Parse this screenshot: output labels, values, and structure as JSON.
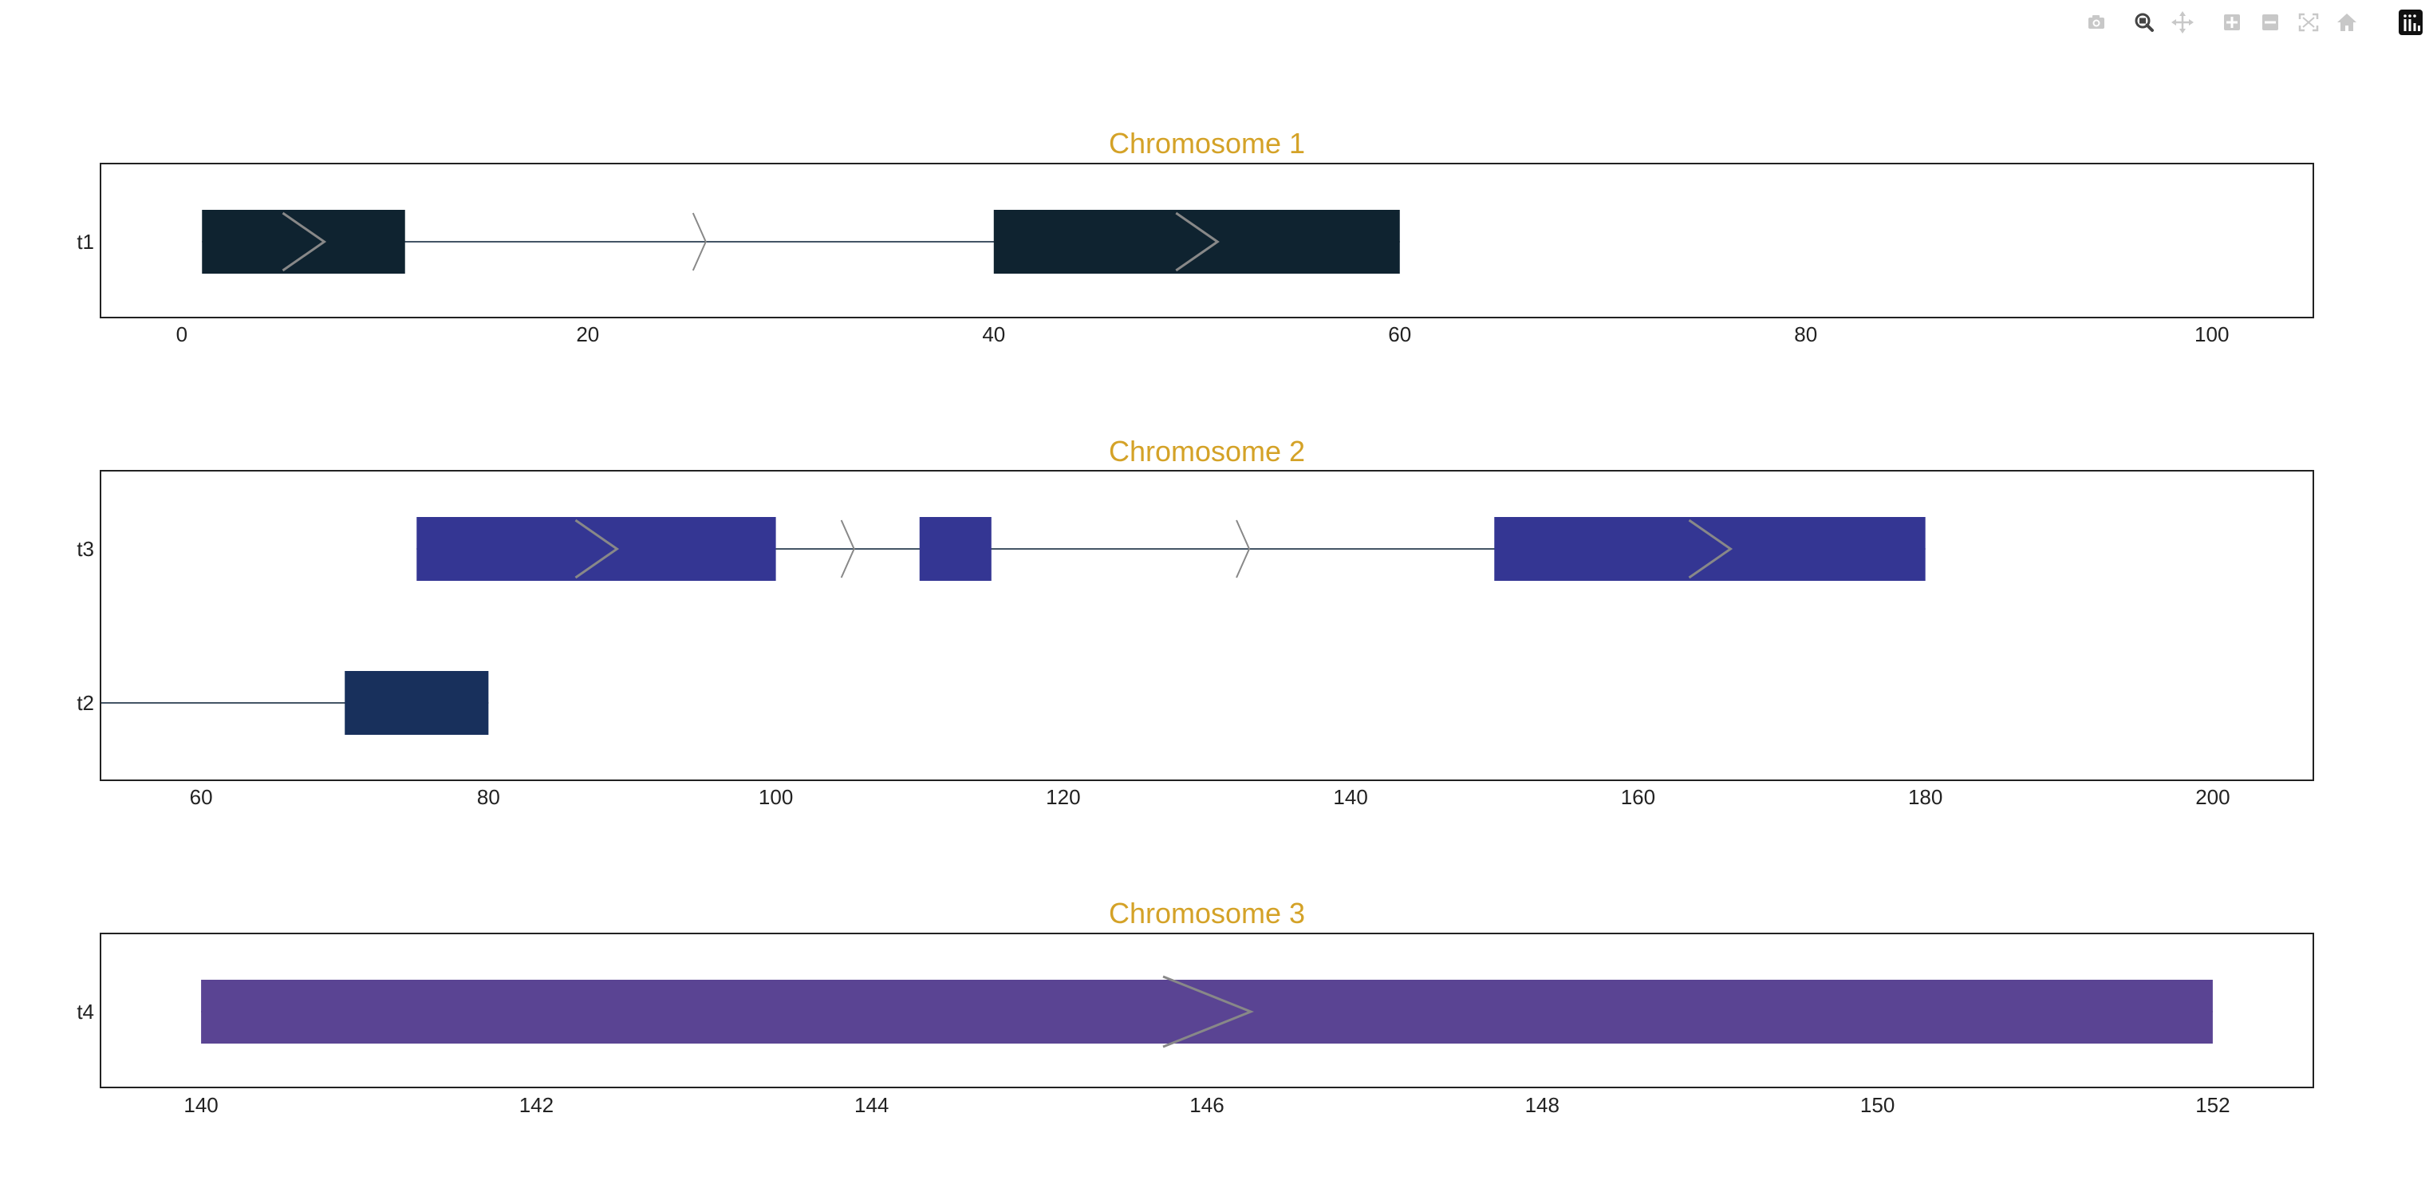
{
  "toolbar": {
    "buttons": [
      {
        "id": "camera",
        "icon": "camera-icon",
        "label": "Download plot as a png",
        "active": false
      },
      {
        "id": "zoom",
        "icon": "zoom-icon",
        "label": "Zoom",
        "active": true
      },
      {
        "id": "pan",
        "icon": "pan-icon",
        "label": "Pan",
        "active": false
      },
      {
        "id": "zoom-in",
        "icon": "zoom-in-icon",
        "label": "Zoom in",
        "active": false
      },
      {
        "id": "zoom-out",
        "icon": "zoom-out-icon",
        "label": "Zoom out",
        "active": false
      },
      {
        "id": "autoscale",
        "icon": "autoscale-icon",
        "label": "Autoscale",
        "active": false
      },
      {
        "id": "reset",
        "icon": "home-icon",
        "label": "Reset axes",
        "active": false
      },
      {
        "id": "logo",
        "icon": "plotly-logo-icon",
        "label": "Produced with Plotly",
        "active": false
      }
    ],
    "active_color": "#444444",
    "inactive_color": "#c8c8c8"
  },
  "chart_data": [
    {
      "type": "gene-track",
      "title": "Chromosome 1",
      "xlim": [
        -4,
        105
      ],
      "xticks": [
        0,
        20,
        40,
        60,
        80,
        100
      ],
      "tracks": [
        {
          "label": "t1",
          "color": "#0f2330",
          "strand": "+",
          "span": [
            1,
            60
          ],
          "exons": [
            [
              1,
              11
            ],
            [
              40,
              60
            ]
          ]
        }
      ]
    },
    {
      "type": "gene-track",
      "title": "Chromosome 2",
      "xlim": [
        53,
        207
      ],
      "xticks": [
        60,
        80,
        100,
        120,
        140,
        160,
        180,
        200
      ],
      "tracks": [
        {
          "label": "t3",
          "color": "#343693",
          "strand": "+",
          "span": [
            75,
            180
          ],
          "exons": [
            [
              75,
              100
            ],
            [
              110,
              115
            ],
            [
              150,
              180
            ]
          ]
        },
        {
          "label": "t2",
          "color": "#18305c",
          "strand": "",
          "span": [
            53,
            80
          ],
          "exons": [
            [
              70,
              80
            ]
          ]
        }
      ]
    },
    {
      "type": "gene-track",
      "title": "Chromosome 3",
      "xlim": [
        139.4,
        152.6
      ],
      "xticks": [
        140,
        142,
        144,
        146,
        148,
        150,
        152
      ],
      "tracks": [
        {
          "label": "t4",
          "color": "#5a4493",
          "strand": "+",
          "span": [
            140,
            152
          ],
          "exons": [
            [
              140,
              152
            ]
          ]
        }
      ]
    }
  ],
  "style": {
    "title_color": "#d4a227",
    "frame_color": "#222222",
    "intron_color": "#445566",
    "arrow_color": "#888888"
  }
}
